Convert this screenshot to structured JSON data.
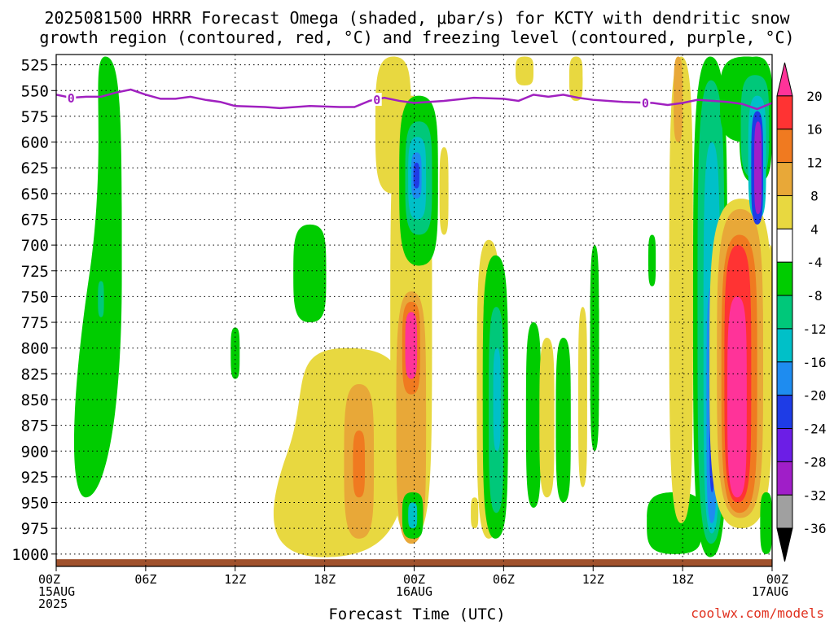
{
  "title": {
    "line1": "2025081500 HRRR Forecast Omega (shaded, μbar/s) for KCTY with dendritic snow",
    "line2": "growth region (contoured, red, °C) and freezing level (contoured, purple, °C)"
  },
  "credit": "coolwx.com/models",
  "chart_data": {
    "type": "heatmap",
    "title": "2025081500 HRRR Forecast Omega (shaded, μbar/s) for KCTY with dendritic snow growth region (contoured, red, °C) and freezing level (contoured, purple, °C)",
    "xlabel": "Forecast Time (UTC)",
    "ylabel": "",
    "x_unit": "hours since 2025-08-15 00Z",
    "xlim": [
      0,
      48
    ],
    "ylim": [
      1012,
      515
    ],
    "y_scale": "linear pressure (hPa)",
    "x_ticks": [
      {
        "value": 0,
        "label": [
          "00Z",
          "15AUG",
          "2025"
        ]
      },
      {
        "value": 6,
        "label": [
          "06Z"
        ]
      },
      {
        "value": 12,
        "label": [
          "12Z"
        ]
      },
      {
        "value": 18,
        "label": [
          "18Z"
        ]
      },
      {
        "value": 24,
        "label": [
          "00Z",
          "16AUG"
        ]
      },
      {
        "value": 30,
        "label": [
          "06Z"
        ]
      },
      {
        "value": 36,
        "label": [
          "12Z"
        ]
      },
      {
        "value": 42,
        "label": [
          "18Z"
        ]
      },
      {
        "value": 48,
        "label": [
          "00Z",
          "17AUG"
        ]
      }
    ],
    "y_ticks": [
      525,
      550,
      575,
      600,
      625,
      650,
      675,
      700,
      725,
      750,
      775,
      800,
      825,
      850,
      875,
      900,
      925,
      950,
      975,
      1000
    ],
    "grid": true,
    "colorbar": {
      "placement": "right",
      "labels": [
        "20",
        "16",
        "12",
        "8",
        "4",
        "-4",
        "-8",
        "-12",
        "-16",
        "-20",
        "-24",
        "-28",
        "-32",
        "-36"
      ],
      "bins": [
        {
          "min": 20,
          "max": null,
          "color": "#ff3399"
        },
        {
          "min": 16,
          "max": 20,
          "color": "#ff3333"
        },
        {
          "min": 12,
          "max": 16,
          "color": "#f07a20"
        },
        {
          "min": 8,
          "max": 12,
          "color": "#e8a838"
        },
        {
          "min": 4,
          "max": 8,
          "color": "#e8d840"
        },
        {
          "min": -4,
          "max": 4,
          "color": "#ffffff"
        },
        {
          "min": -8,
          "max": -4,
          "color": "#00cc00"
        },
        {
          "min": -12,
          "max": -8,
          "color": "#00c87a"
        },
        {
          "min": -16,
          "max": -12,
          "color": "#00c0c8"
        },
        {
          "min": -20,
          "max": -16,
          "color": "#1e8cf0"
        },
        {
          "min": -24,
          "max": -20,
          "color": "#1e3ce6"
        },
        {
          "min": -28,
          "max": -24,
          "color": "#6c1ee6"
        },
        {
          "min": -32,
          "max": -28,
          "color": "#a01ec8"
        },
        {
          "min": -36,
          "max": -32,
          "color": "#a0a0a0"
        },
        {
          "min": null,
          "max": -36,
          "color": "#000000"
        }
      ]
    },
    "freezing_level": {
      "label": "0",
      "color": "#a020c0",
      "points": [
        [
          0,
          554
        ],
        [
          1,
          557
        ],
        [
          2,
          556
        ],
        [
          3,
          556
        ],
        [
          4,
          552
        ],
        [
          5,
          549
        ],
        [
          6,
          554
        ],
        [
          7,
          558
        ],
        [
          8,
          558
        ],
        [
          9,
          556
        ],
        [
          10,
          559
        ],
        [
          11,
          561
        ],
        [
          12,
          565
        ],
        [
          14,
          566
        ],
        [
          15,
          567
        ],
        [
          17,
          565
        ],
        [
          19,
          566
        ],
        [
          20,
          566
        ],
        [
          21,
          560
        ],
        [
          22,
          557
        ],
        [
          23,
          560
        ],
        [
          24,
          562
        ],
        [
          26,
          560
        ],
        [
          28,
          557
        ],
        [
          30,
          558
        ],
        [
          31,
          560
        ],
        [
          32,
          554
        ],
        [
          33,
          556
        ],
        [
          34,
          554
        ],
        [
          35,
          557
        ],
        [
          36,
          559
        ],
        [
          38,
          561
        ],
        [
          40,
          562
        ],
        [
          41,
          564
        ],
        [
          42,
          562
        ],
        [
          43,
          559
        ],
        [
          45,
          561
        ],
        [
          46,
          563
        ],
        [
          47,
          568
        ],
        [
          48,
          562
        ]
      ],
      "label_x": [
        1,
        21.5,
        39.5
      ]
    },
    "ground": {
      "color": "#a0522d",
      "pressure_top": 1005
    },
    "regions": [
      {
        "bin": -6,
        "t0": 2.2,
        "t1": 4.4,
        "pt": 517,
        "pb": 945,
        "skew": -1.3
      },
      {
        "bin": -10,
        "t0": 2.8,
        "t1": 3.2,
        "pt": 735,
        "pb": 770
      },
      {
        "bin": -6,
        "t0": 11.7,
        "t1": 12.3,
        "pt": 780,
        "pb": 830
      },
      {
        "bin": -6,
        "t0": 15.9,
        "t1": 18.1,
        "pt": 680,
        "pb": 775
      },
      {
        "bin": 6,
        "t0": 15.5,
        "t1": 23.5,
        "pt": 800,
        "pb": 1003,
        "skew": -1.5
      },
      {
        "bin": 10,
        "t0": 19.3,
        "t1": 21.3,
        "pt": 835,
        "pb": 985
      },
      {
        "bin": 14,
        "t0": 19.9,
        "t1": 20.7,
        "pt": 880,
        "pb": 945
      },
      {
        "bin": 6,
        "t0": 21.4,
        "t1": 23.8,
        "pt": 517,
        "pb": 650
      },
      {
        "bin": 6,
        "t0": 22.4,
        "t1": 25.2,
        "pt": 555,
        "pb": 985
      },
      {
        "bin": 10,
        "t0": 22.8,
        "t1": 24.8,
        "pt": 745,
        "pb": 990
      },
      {
        "bin": 14,
        "t0": 23.2,
        "t1": 24.4,
        "pt": 755,
        "pb": 845
      },
      {
        "bin": 22,
        "t0": 23.4,
        "t1": 24.2,
        "pt": 765,
        "pb": 830
      },
      {
        "bin": -6,
        "t0": 23.0,
        "t1": 25.6,
        "pt": 555,
        "pb": 720
      },
      {
        "bin": -10,
        "t0": 23.4,
        "t1": 25.2,
        "pt": 580,
        "pb": 690
      },
      {
        "bin": -14,
        "t0": 23.6,
        "t1": 24.8,
        "pt": 595,
        "pb": 675
      },
      {
        "bin": -18,
        "t0": 23.8,
        "t1": 24.5,
        "pt": 610,
        "pb": 655
      },
      {
        "bin": -22,
        "t0": 23.95,
        "t1": 24.35,
        "pt": 620,
        "pb": 645
      },
      {
        "bin": -6,
        "t0": 23.2,
        "t1": 24.6,
        "pt": 940,
        "pb": 985
      },
      {
        "bin": -14,
        "t0": 23.6,
        "t1": 24.2,
        "pt": 950,
        "pb": 975
      },
      {
        "bin": 6,
        "t0": 25.7,
        "t1": 26.3,
        "pt": 605,
        "pb": 690
      },
      {
        "bin": 6,
        "t0": 27.8,
        "t1": 28.3,
        "pt": 945,
        "pb": 975
      },
      {
        "bin": 6,
        "t0": 28.2,
        "t1": 29.8,
        "pt": 695,
        "pb": 985
      },
      {
        "bin": -6,
        "t0": 28.6,
        "t1": 30.3,
        "pt": 710,
        "pb": 985
      },
      {
        "bin": -10,
        "t0": 29.0,
        "t1": 30.0,
        "pt": 760,
        "pb": 960
      },
      {
        "bin": -14,
        "t0": 29.3,
        "t1": 29.8,
        "pt": 800,
        "pb": 900
      },
      {
        "bin": -6,
        "t0": 31.5,
        "t1": 32.5,
        "pt": 775,
        "pb": 955
      },
      {
        "bin": 6,
        "t0": 30.8,
        "t1": 32.0,
        "pt": 517,
        "pb": 545
      },
      {
        "bin": 6,
        "t0": 32.4,
        "t1": 33.4,
        "pt": 790,
        "pb": 945
      },
      {
        "bin": -6,
        "t0": 33.5,
        "t1": 34.5,
        "pt": 790,
        "pb": 950
      },
      {
        "bin": 6,
        "t0": 34.4,
        "t1": 35.3,
        "pt": 517,
        "pb": 560
      },
      {
        "bin": 6,
        "t0": 35.0,
        "t1": 35.6,
        "pt": 760,
        "pb": 935
      },
      {
        "bin": -6,
        "t0": 35.8,
        "t1": 36.4,
        "pt": 700,
        "pb": 900
      },
      {
        "bin": -6,
        "t0": 39.7,
        "t1": 40.2,
        "pt": 690,
        "pb": 740
      },
      {
        "bin": -6,
        "t0": 39.6,
        "t1": 43.3,
        "pt": 940,
        "pb": 1000
      },
      {
        "bin": 6,
        "t0": 41.1,
        "t1": 42.7,
        "pt": 517,
        "pb": 970
      },
      {
        "bin": 10,
        "t0": 41.4,
        "t1": 42.0,
        "pt": 517,
        "pb": 600
      },
      {
        "bin": -6,
        "t0": 42.7,
        "t1": 45.0,
        "pt": 517,
        "pb": 1003
      },
      {
        "bin": -10,
        "t0": 43.0,
        "t1": 44.8,
        "pt": 540,
        "pb": 990
      },
      {
        "bin": -14,
        "t0": 43.4,
        "t1": 44.5,
        "pt": 600,
        "pb": 980
      },
      {
        "bin": -18,
        "t0": 43.6,
        "t1": 44.3,
        "pt": 740,
        "pb": 970
      },
      {
        "bin": -22,
        "t0": 43.8,
        "t1": 44.15,
        "pt": 760,
        "pb": 940
      },
      {
        "bin": -6,
        "t0": 44.5,
        "t1": 48,
        "pt": 517,
        "pb": 600
      },
      {
        "bin": 6,
        "t0": 43.8,
        "t1": 48,
        "pt": 655,
        "pb": 975
      },
      {
        "bin": 10,
        "t0": 44.3,
        "t1": 47.4,
        "pt": 665,
        "pb": 965
      },
      {
        "bin": 14,
        "t0": 44.6,
        "t1": 47.0,
        "pt": 690,
        "pb": 960
      },
      {
        "bin": 18,
        "t0": 44.8,
        "t1": 46.6,
        "pt": 700,
        "pb": 950
      },
      {
        "bin": 22,
        "t0": 45.0,
        "t1": 46.3,
        "pt": 750,
        "pb": 945
      },
      {
        "bin": -6,
        "t0": 45.8,
        "t1": 48,
        "pt": 517,
        "pb": 640
      },
      {
        "bin": -10,
        "t0": 45.9,
        "t1": 47.8,
        "pt": 535,
        "pb": 635
      },
      {
        "bin": -14,
        "t0": 46.4,
        "t1": 47.6,
        "pt": 555,
        "pb": 675
      },
      {
        "bin": -22,
        "t0": 46.6,
        "t1": 47.4,
        "pt": 570,
        "pb": 680
      },
      {
        "bin": -30,
        "t0": 46.8,
        "t1": 47.3,
        "pt": 580,
        "pb": 670
      },
      {
        "bin": -6,
        "t0": 47.2,
        "t1": 48,
        "pt": 940,
        "pb": 1000
      },
      {
        "bin": 6,
        "t0": 47.8,
        "t1": 48,
        "pt": 700,
        "pb": 760
      }
    ]
  }
}
